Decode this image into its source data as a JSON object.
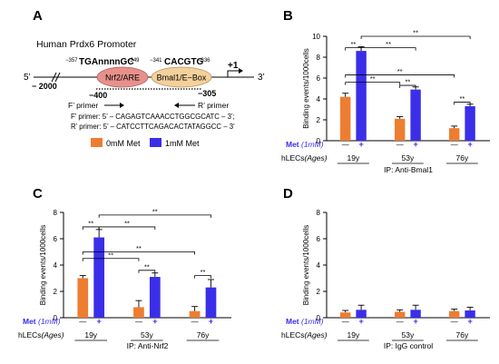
{
  "panel_a": {
    "letter": "A",
    "title": "Human Prdx6 Promoter",
    "ebox_pos_left": "−341",
    "ebox_seq": "CACGTG",
    "ebox_pos_right": "−336",
    "are_pos_left": "−357",
    "are_seq": "TGAnnnnGC",
    "are_pos_right": "−349",
    "tss": "+1",
    "five_prime": "5’",
    "three_prime": "3’",
    "start_pos": "− 2000",
    "nrf2_box": "Nrf2/ARE",
    "bmal_box": "Bmal1/E−Box",
    "f_pos": "−400",
    "r_pos": "−305",
    "f_primer_label": "F’ primer",
    "r_primer_label": "R’ primer",
    "f_seq": "F’ primer: 5’ – CAGAGTCAAACCTGGCGCATC – 3’;",
    "r_seq": "R’ primer: 5’ – CATCCTTCAGACACTATAGGCC – 3’",
    "legend": [
      {
        "label": "0mM Met",
        "color": "#ed7d31"
      },
      {
        "label": "1mM Met",
        "color": "#3a2ee8"
      }
    ]
  },
  "labels": {
    "met_prefix": "Met",
    "met_unit": "(1mM)",
    "minus": "—",
    "plus": "+",
    "cells_prefix": "hLECs",
    "cells_unit": "(Ages)",
    "sig": "**"
  },
  "chart_data": [
    {
      "panel": "B",
      "type": "bar",
      "ylabel": "Binding events/1000cells",
      "ylim": [
        0,
        10
      ],
      "yticks": [
        0,
        2,
        4,
        6,
        8,
        10
      ],
      "categories": [
        "19y",
        "53y",
        "76y"
      ],
      "series": [
        {
          "values": [
            4.2,
            2.1,
            1.2
          ],
          "errors": [
            0.35,
            0.2,
            0.2
          ]
        },
        {
          "values": [
            8.6,
            4.9,
            3.3
          ],
          "errors": [
            0.4,
            0.25,
            0.2
          ]
        }
      ],
      "ip_label": "IP: Anti-Bmal1"
    },
    {
      "panel": "C",
      "type": "bar",
      "ylabel": "Binding events/1000cells",
      "ylim": [
        0,
        8
      ],
      "yticks": [
        0,
        2,
        4,
        6,
        8
      ],
      "categories": [
        "19y",
        "53y",
        "76y"
      ],
      "series": [
        {
          "values": [
            3.0,
            0.8,
            0.5
          ],
          "errors": [
            0.2,
            0.5,
            0.35
          ]
        },
        {
          "values": [
            6.1,
            3.1,
            2.3
          ],
          "errors": [
            0.6,
            0.3,
            0.6
          ]
        }
      ],
      "ip_label": "IP: Anti-Nrf2"
    },
    {
      "panel": "D",
      "type": "bar",
      "ylabel": "Binding events/1000cells",
      "ylim": [
        0,
        8
      ],
      "yticks": [
        0,
        2,
        4,
        6,
        8
      ],
      "categories": [
        "19y",
        "53y",
        "76y"
      ],
      "series": [
        {
          "values": [
            0.4,
            0.45,
            0.5
          ],
          "errors": [
            0.15,
            0.15,
            0.15
          ]
        },
        {
          "values": [
            0.6,
            0.6,
            0.55
          ],
          "errors": [
            0.35,
            0.35,
            0.25
          ]
        }
      ],
      "ip_label": "IP: IgG  control"
    }
  ]
}
